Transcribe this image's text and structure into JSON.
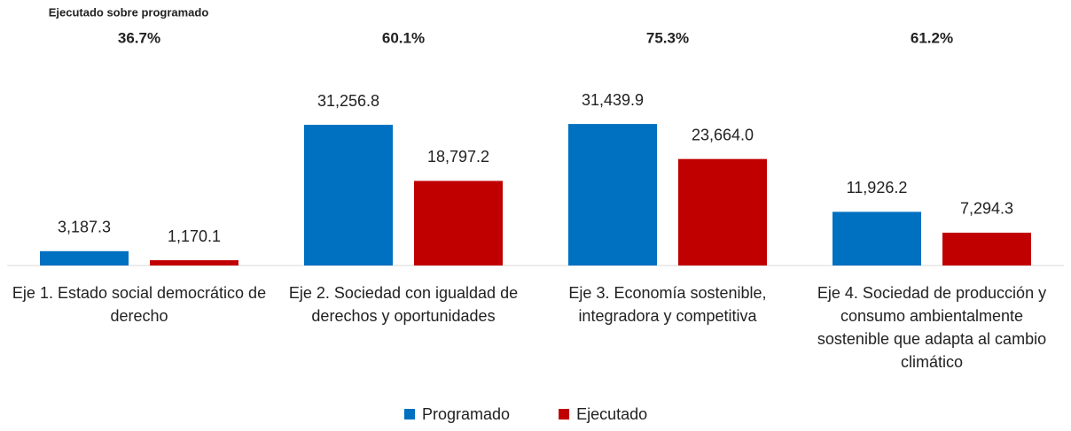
{
  "chart_data": {
    "type": "bar",
    "annotation_title": "Ejecutado sobre programado",
    "annotations": [
      "36.7%",
      "60.1%",
      "75.3%",
      "61.2%"
    ],
    "categories": [
      "Eje 1. Estado social democrático de derecho",
      "Eje 2. Sociedad con igualdad de derechos y oportunidades",
      "Eje 3. Economía sostenible, integradora y competitiva",
      "Eje 4. Sociedad de producción y consumo ambientalmente sostenible que adapta al cambio climático"
    ],
    "series": [
      {
        "name": "Programado",
        "color": "#0070c0",
        "values": [
          3187.3,
          31256.8,
          31439.9,
          11926.2
        ],
        "value_labels": [
          "3,187.3",
          "31,256.8",
          "31,439.9",
          "11,926.2"
        ]
      },
      {
        "name": "Ejecutado",
        "color": "#c00000",
        "values": [
          1170.1,
          18797.2,
          23664.0,
          7294.3
        ],
        "value_labels": [
          "1,170.1",
          "18,797.2",
          "23,664.0",
          "7,294.3"
        ]
      }
    ],
    "ylim": [
      0,
      35000
    ],
    "legend": "bottom"
  }
}
